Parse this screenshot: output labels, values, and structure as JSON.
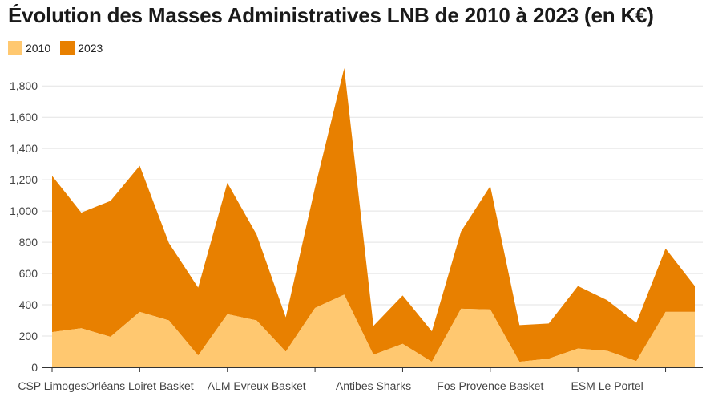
{
  "chart_data": {
    "type": "area",
    "stacked": true,
    "title": "Évolution des Masses Administratives LNB de 2010 à 2023 (en K€)",
    "xlabel": "",
    "ylabel": "",
    "ylim": [
      0,
      1950
    ],
    "yticks": [
      0,
      200,
      400,
      600,
      800,
      1000,
      1200,
      1400,
      1600,
      1800
    ],
    "ytick_labels": [
      "0",
      "200",
      "400",
      "600",
      "800",
      "1,000",
      "1,200",
      "1,400",
      "1,600",
      "1,800"
    ],
    "grid": true,
    "legend_position": "top-left",
    "colors": {
      "2010": "#ffc870",
      "2023": "#e88000"
    },
    "x_tick_labels": [
      {
        "index": 0,
        "label": "CSP Limoges"
      },
      {
        "index": 3,
        "label": "Orléans Loiret Basket"
      },
      {
        "index": 7,
        "label": "ALM Evreux Basket"
      },
      {
        "index": 11,
        "label": "Antibes Sharks"
      },
      {
        "index": 15,
        "label": "Fos Provence Basket"
      },
      {
        "index": 19,
        "label": "ESM Le Portel"
      }
    ],
    "series": [
      {
        "name": "2010",
        "values": [
          225,
          250,
          195,
          355,
          300,
          75,
          340,
          300,
          100,
          380,
          465,
          80,
          150,
          35,
          375,
          370,
          35,
          55,
          120,
          105,
          40,
          355,
          355
        ]
      },
      {
        "name": "2023",
        "values": [
          1000,
          740,
          870,
          935,
          495,
          435,
          840,
          550,
          220,
          770,
          1450,
          185,
          310,
          195,
          495,
          790,
          235,
          225,
          400,
          325,
          245,
          405,
          165
        ]
      }
    ]
  }
}
